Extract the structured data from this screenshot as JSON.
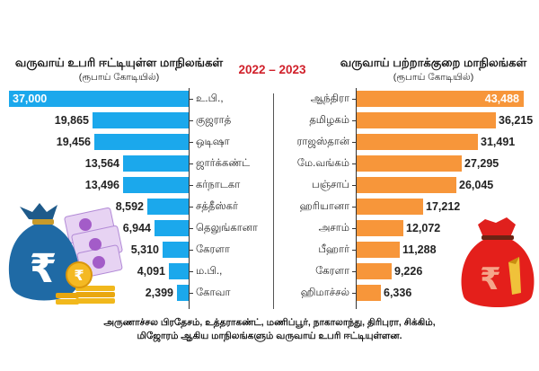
{
  "chart_data": [
    {
      "type": "bar",
      "orientation": "horizontal",
      "title": "வருவாய் உபரி ஈட்டியுள்ள மாநிலங்கள்",
      "subtitle": "(ரூபாய் கோடியில்)",
      "period": "2022 – 2023",
      "categories": [
        "உ.பி.,",
        "குஜராத்",
        "ஒடிஷா",
        "ஜார்க்கண்ட்",
        "கர்நாடகா",
        "சத்தீஸ்கர்",
        "தெலுங்கானா",
        "கேரளா",
        "ம.பி.,",
        "கோவா"
      ],
      "values": [
        37000,
        19865,
        19456,
        13564,
        13496,
        8592,
        6944,
        5310,
        4091,
        2399
      ],
      "value_labels": [
        "37,000",
        "19,865",
        "19,456",
        "13,564",
        "13,496",
        "8,592",
        "6,944",
        "5,310",
        "4,091",
        "2,399"
      ],
      "color": "#1ba8ec",
      "direction": "leftward",
      "xlim": [
        0,
        37000
      ],
      "grid": false
    },
    {
      "type": "bar",
      "orientation": "horizontal",
      "title": "வருவாய் பற்றாக்குறை மாநிலங்கள்",
      "subtitle": "(ரூபாய் கோடியில்)",
      "period": "2022 – 2023",
      "categories": [
        "ஆந்திரா",
        "தமிழகம்",
        "ராஜஸ்தான்",
        "மே.வங்கம்",
        "பஞ்சாப்",
        "ஹரியானா",
        "அசாம்",
        "பீஹார்",
        "கேரளா",
        "ஹிமாச்சல்"
      ],
      "values": [
        43488,
        36215,
        31491,
        27295,
        26045,
        17212,
        12072,
        11288,
        9226,
        6336
      ],
      "value_labels": [
        "43,488",
        "36,215",
        "31,491",
        "27,295",
        "26,045",
        "17,212",
        "12,072",
        "11,288",
        "9,226",
        "6,336"
      ],
      "color": "#f7963a",
      "direction": "rightward",
      "xlim": [
        0,
        43488
      ],
      "grid": false
    }
  ],
  "header": {
    "year": "2022 – 2023",
    "left_title": "வருவாய் உபரி ஈட்டியுள்ள மாநிலங்கள்",
    "left_subtitle": "(ரூபாய் கோடியில்)",
    "right_title": "வருவாய் பற்றாக்குறை மாநிலங்கள்",
    "right_subtitle": "(ரூபாய் கோடியில்)"
  },
  "footnote": {
    "line1": "அருணாச்சல பிரதேசம், உத்தராகண்ட், மணிப்பூர், நாகாலாந்து, திரிபுரா, சிக்கிம்,",
    "line2": "மிஜோரம் ஆகிய மாநிலங்களும் வருவாய் உபரி ஈட்டியுள்ளன."
  },
  "illustrations": {
    "left": "blue-money-bag-with-rupee-notes-and-coins-icon",
    "right": "red-money-bag-with-rupee-icon"
  },
  "colors": {
    "surplus_bar": "#1ba8ec",
    "deficit_bar": "#f7963a",
    "year_text": "#d0202a"
  }
}
